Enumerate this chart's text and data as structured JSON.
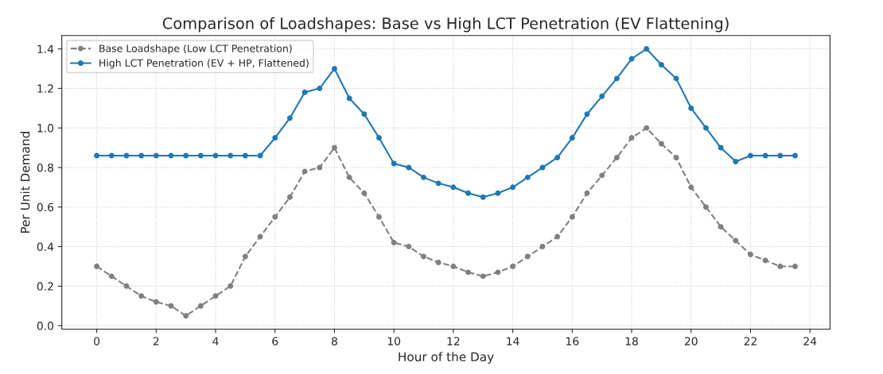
{
  "chart_data": {
    "type": "line",
    "title": "Comparison of Loadshapes: Base vs High LCT Penetration (EV Flattening)",
    "xlabel": "Hour of the Day",
    "ylabel": "Per Unit Demand",
    "x": [
      0,
      0.5,
      1,
      1.5,
      2,
      2.5,
      3,
      3.5,
      4,
      4.5,
      5,
      5.5,
      6,
      6.5,
      7,
      7.5,
      8,
      8.5,
      9,
      9.5,
      10,
      10.5,
      11,
      11.5,
      12,
      12.5,
      13,
      13.5,
      14,
      14.5,
      15,
      15.5,
      16,
      16.5,
      17,
      17.5,
      18,
      18.5,
      19,
      19.5,
      20,
      20.5,
      21,
      21.5,
      22,
      22.5,
      23,
      23.5
    ],
    "series": [
      {
        "name": "Base Loadshape (Low LCT Penetration)",
        "color": "#808080",
        "line_style": "dashed",
        "values": [
          0.3,
          0.25,
          0.2,
          0.15,
          0.12,
          0.1,
          0.05,
          0.1,
          0.15,
          0.2,
          0.35,
          0.45,
          0.55,
          0.65,
          0.78,
          0.8,
          0.9,
          0.75,
          0.67,
          0.55,
          0.42,
          0.4,
          0.35,
          0.32,
          0.3,
          0.27,
          0.25,
          0.27,
          0.3,
          0.35,
          0.4,
          0.45,
          0.55,
          0.67,
          0.76,
          0.85,
          0.95,
          1.0,
          0.92,
          0.85,
          0.7,
          0.6,
          0.5,
          0.43,
          0.36,
          0.33,
          0.3,
          0.3
        ]
      },
      {
        "name": "High LCT Penetration (EV + HP, Flattened)",
        "color": "#1f77b4",
        "line_style": "solid",
        "values": [
          0.86,
          0.86,
          0.86,
          0.86,
          0.86,
          0.86,
          0.86,
          0.86,
          0.86,
          0.86,
          0.86,
          0.86,
          0.95,
          1.05,
          1.18,
          1.2,
          1.3,
          1.15,
          1.07,
          0.95,
          0.82,
          0.8,
          0.75,
          0.72,
          0.7,
          0.67,
          0.65,
          0.67,
          0.7,
          0.75,
          0.8,
          0.85,
          0.95,
          1.07,
          1.16,
          1.25,
          1.35,
          1.4,
          1.32,
          1.25,
          1.1,
          1.0,
          0.9,
          0.83,
          0.86,
          0.86,
          0.86,
          0.86
        ]
      }
    ],
    "xlim": [
      -1.175,
      24.675
    ],
    "ylim": [
      -0.0175,
      1.4675
    ],
    "xticks": [
      0,
      2,
      4,
      6,
      8,
      10,
      12,
      14,
      16,
      18,
      20,
      22,
      24
    ],
    "yticks": [
      {
        "value": 0,
        "label": "0.0"
      },
      {
        "value": 0.2,
        "label": "0.2"
      },
      {
        "value": 0.4,
        "label": "0.4"
      },
      {
        "value": 0.6,
        "label": "0.6"
      },
      {
        "value": 0.8,
        "label": "0.8"
      },
      {
        "value": 1.0,
        "label": "1.0"
      },
      {
        "value": 1.2,
        "label": "1.2"
      },
      {
        "value": 1.4,
        "label": "1.4"
      }
    ],
    "grid": true,
    "legend": "top left",
    "marker": "circle"
  }
}
